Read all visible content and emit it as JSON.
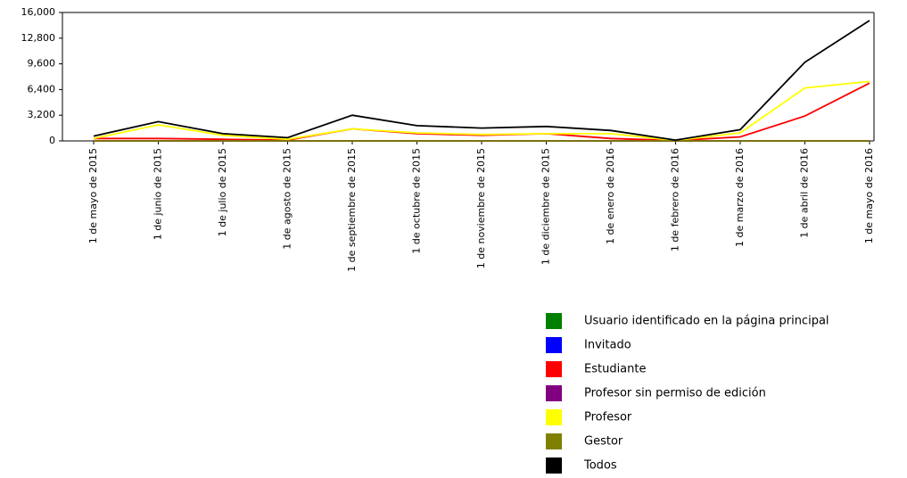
{
  "chart_data": {
    "type": "line",
    "categories": [
      "1 de mayo de 2015",
      "1 de junio de 2015",
      "1 de julio de 2015",
      "1 de agosto de 2015",
      "1 de septiembre de 2015",
      "1 de octubre de 2015",
      "1 de noviembre de 2015",
      "1 de diciembre de 2015",
      "1 de enero de 2016",
      "1 de febrero de 2016",
      "1 de marzo de 2016",
      "1 de abril de 2016",
      "1 de mayo de 2016"
    ],
    "series": [
      {
        "name": "Usuario identificado en la página principal",
        "color": "#008000",
        "values": [
          0,
          0,
          0,
          0,
          0,
          0,
          0,
          0,
          0,
          0,
          0,
          0,
          0
        ]
      },
      {
        "name": "Invitado",
        "color": "#0000ff",
        "values": [
          0,
          0,
          0,
          0,
          0,
          0,
          0,
          0,
          0,
          0,
          0,
          0,
          0
        ]
      },
      {
        "name": "Estudiante",
        "color": "#ff0000",
        "values": [
          300,
          300,
          200,
          100,
          1500,
          900,
          700,
          900,
          300,
          50,
          500,
          3100,
          7200
        ]
      },
      {
        "name": "Profesor sin permiso de edición",
        "color": "#800080",
        "values": [
          0,
          0,
          0,
          0,
          0,
          0,
          0,
          0,
          0,
          0,
          0,
          0,
          0
        ]
      },
      {
        "name": "Profesor",
        "color": "#ffff00",
        "values": [
          300,
          2000,
          700,
          200,
          1500,
          1000,
          800,
          900,
          900,
          50,
          1000,
          6600,
          7400
        ]
      },
      {
        "name": "Gestor",
        "color": "#808000",
        "values": [
          0,
          0,
          0,
          0,
          0,
          0,
          0,
          0,
          0,
          0,
          0,
          0,
          0
        ]
      },
      {
        "name": "Todos",
        "color": "#000000",
        "values": [
          600,
          2400,
          900,
          400,
          3200,
          1900,
          1600,
          1800,
          1300,
          100,
          1400,
          9800,
          15000
        ]
      }
    ],
    "ylim": [
      0,
      16000
    ],
    "yticks": [
      0,
      {
        "value": 3200,
        "label": "3,200"
      },
      {
        "value": 6400,
        "label": "6,400"
      },
      {
        "value": 9600,
        "label": "9,600"
      },
      {
        "value": 12800,
        "label": "12,800"
      },
      {
        "value": 16000,
        "label": "16,000"
      }
    ]
  }
}
